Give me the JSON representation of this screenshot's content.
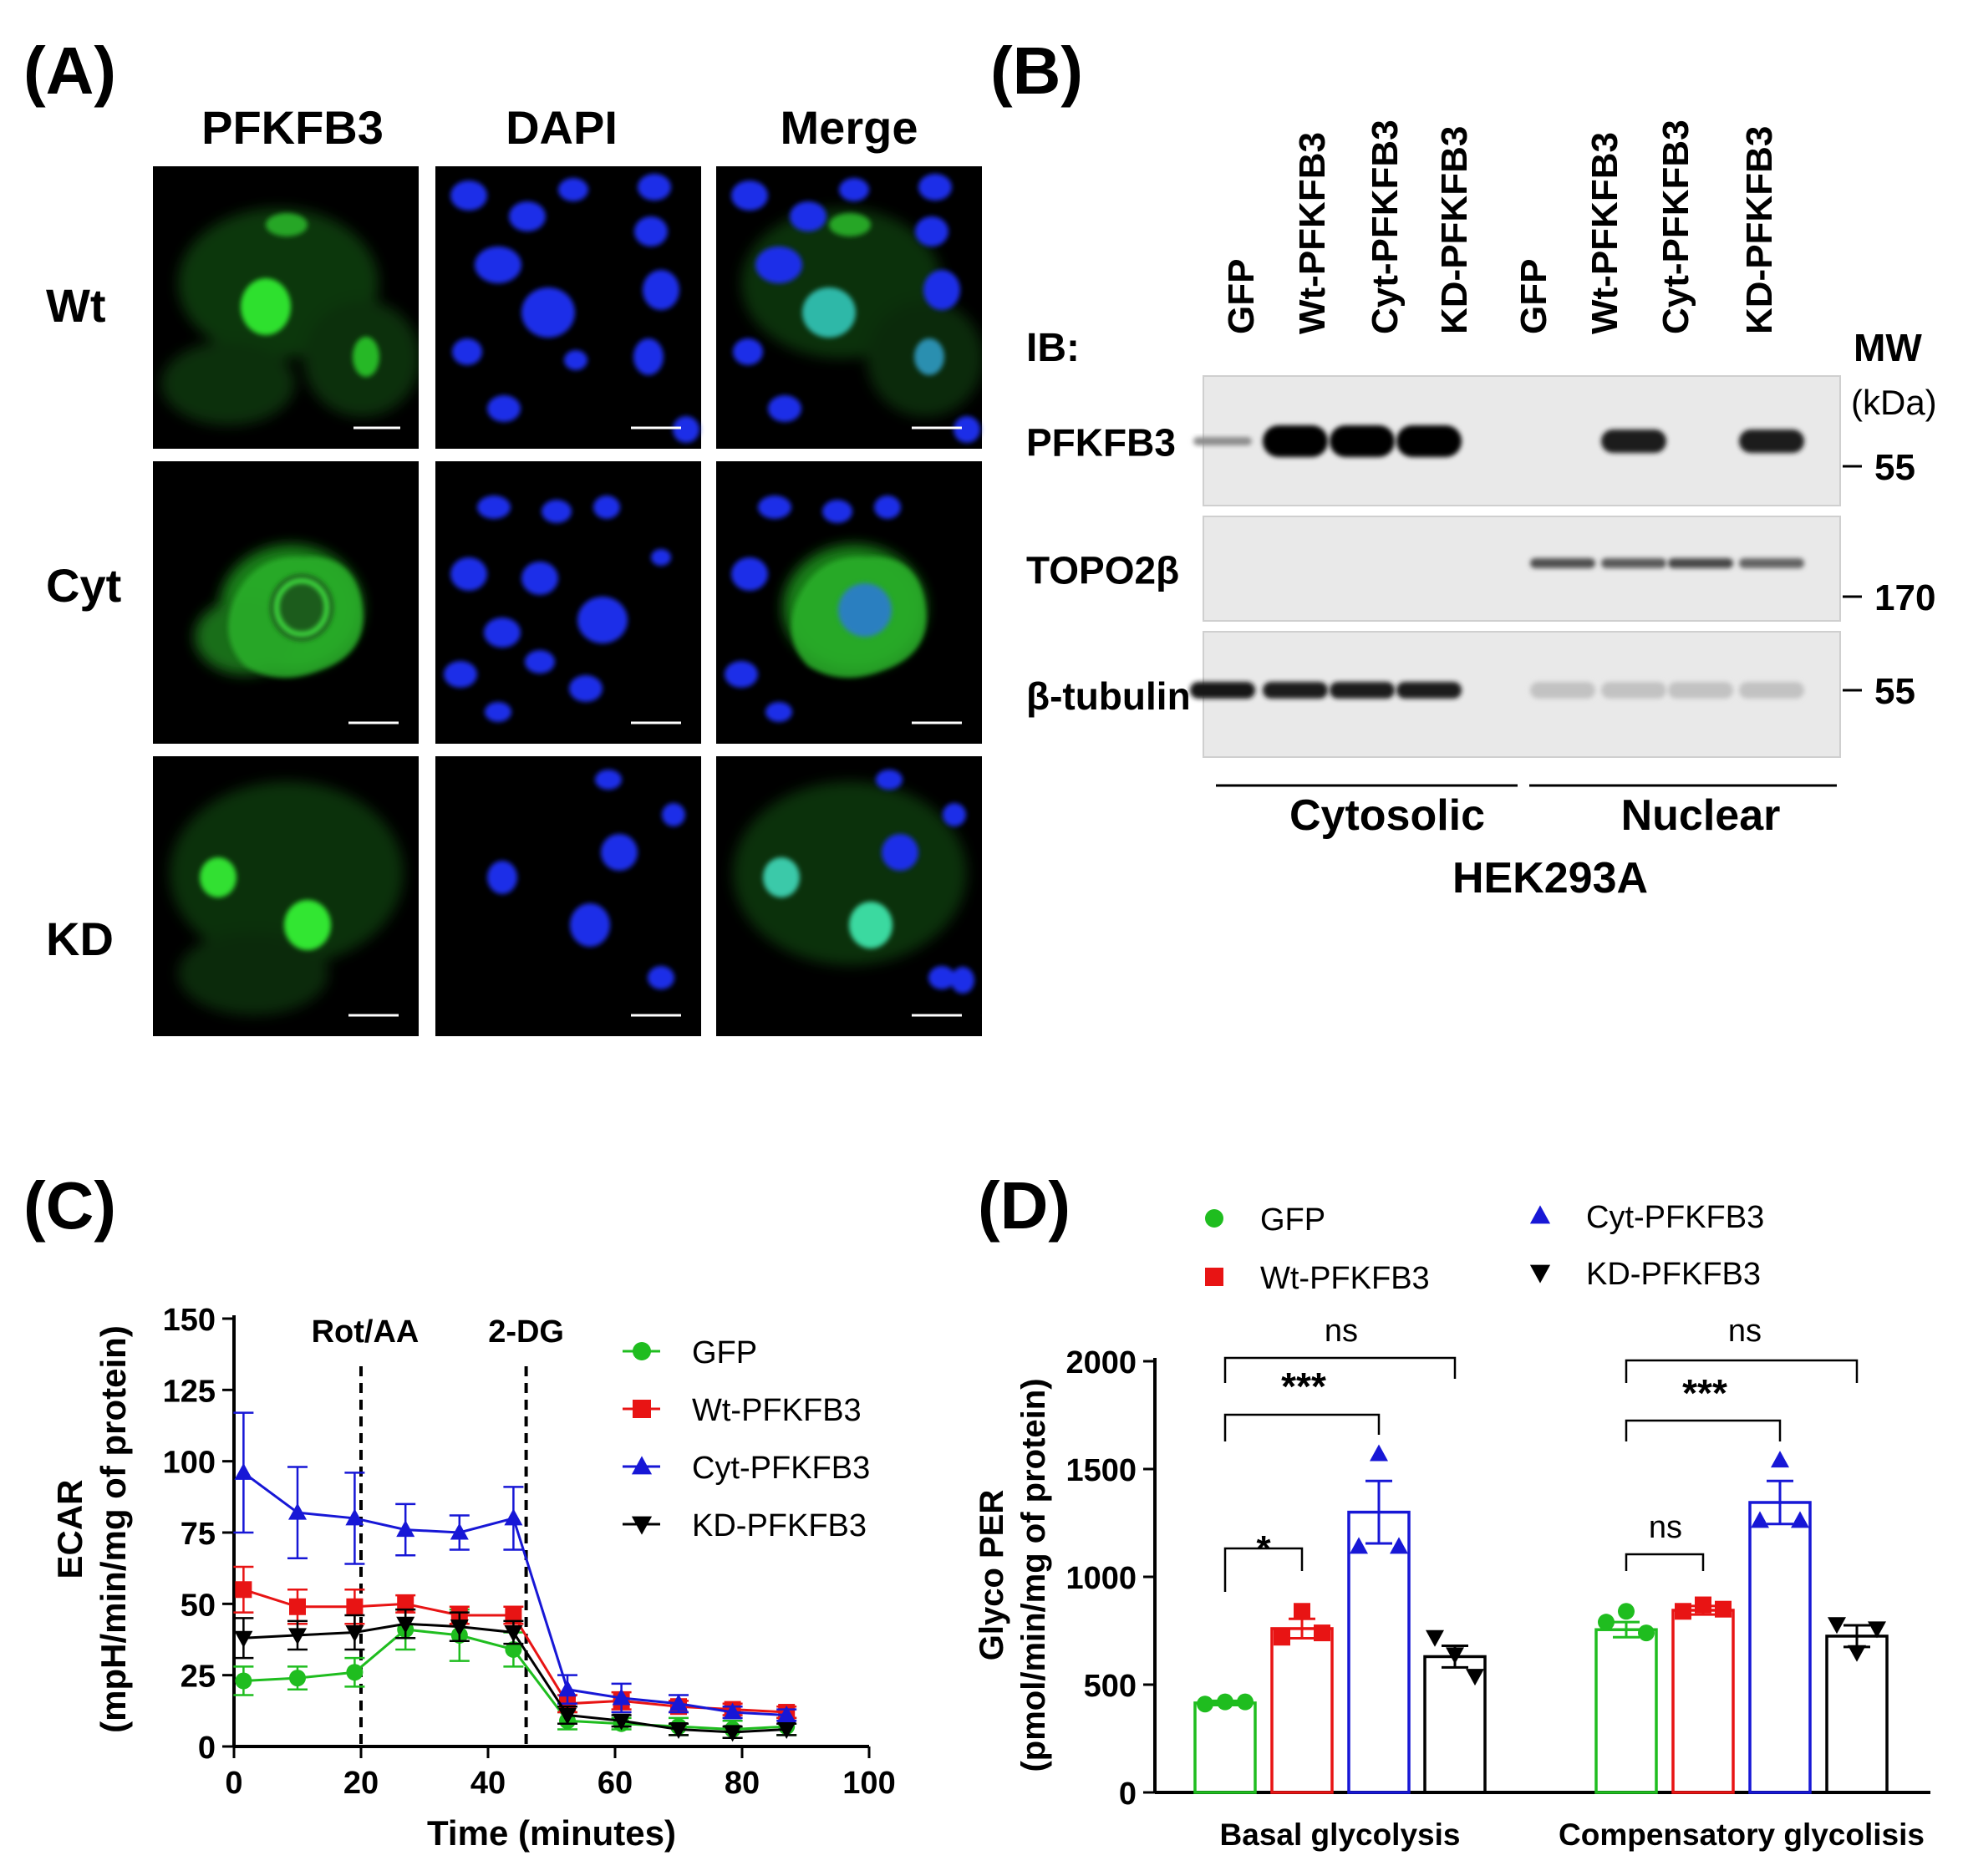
{
  "panel_a": {
    "letter": "(A)",
    "column_headers": [
      "PFKFB3",
      "DAPI",
      "Merge"
    ],
    "row_labels": [
      "Wt",
      "Cyt",
      "KD"
    ]
  },
  "panel_b": {
    "letter": "(B)",
    "lanes": [
      "GFP",
      "Wt-PFKFB3",
      "Cyt-PFKFB3",
      "KD-PFKFB3",
      "GFP",
      "Wt-PFKFB3",
      "Cyt-PFKFB3",
      "KD-PFKFB3"
    ],
    "ib_label": "IB:",
    "mw_label": "MW",
    "kda_label": "(kDa)",
    "blots": [
      {
        "label": "PFKFB3",
        "mw": "55",
        "intensity": [
          0.3,
          1,
          1,
          1,
          0,
          0.85,
          0,
          0.85
        ]
      },
      {
        "label": "TOPO2β",
        "mw": "170",
        "intensity": [
          0,
          0,
          0,
          0,
          0.6,
          0.55,
          0.65,
          0.5
        ]
      },
      {
        "label": "β-tubulin",
        "mw": "55",
        "intensity": [
          0.9,
          0.85,
          0.85,
          0.85,
          0.03,
          0.03,
          0.03,
          0.03
        ]
      }
    ],
    "groups": [
      "Cytosolic",
      "Nuclear"
    ],
    "cell_line": "HEK293A"
  },
  "panel_c": {
    "letter": "(C)",
    "colors": {
      "GFP": "#1fbd1f",
      "Wt-PFKFB3": "#e81414",
      "Cyt-PFKFB3": "#1717d6",
      "KD-PFKFB3": "#000000"
    },
    "treatments": [
      {
        "label": "Rot/AA",
        "x": 20
      },
      {
        "label": "2-DG",
        "x": 46
      }
    ],
    "y_ticks": [
      "0",
      "25",
      "50",
      "75",
      "100",
      "125",
      "150"
    ],
    "x_ticks": [
      "0",
      "20",
      "40",
      "60",
      "80",
      "100"
    ]
  },
  "panel_d": {
    "letter": "(D)",
    "colors": {
      "GFP": "#1fbd1f",
      "Wt-PFKFB3": "#e81414",
      "Cyt-PFKFB3": "#1717d6",
      "KD-PFKFB3": "#000000"
    },
    "legend": [
      "GFP",
      "Wt-PFKFB3",
      "Cyt-PFKFB3",
      "KD-PFKFB3"
    ],
    "y_ticks": [
      "0",
      "500",
      "1000",
      "1500",
      "2000"
    ],
    "significance": [
      {
        "group": 0,
        "label": "*"
      },
      {
        "group": 0,
        "label": "***"
      },
      {
        "group": 0,
        "label": "ns"
      },
      {
        "group": 1,
        "label": "ns"
      },
      {
        "group": 1,
        "label": "***"
      },
      {
        "group": 1,
        "label": "ns"
      }
    ]
  },
  "chart_data": [
    {
      "type": "line",
      "xlabel": "Time (minutes)",
      "ylabel": "ECAR",
      "ylabel2": "(mpH/min/mg of protein)",
      "xlim": [
        0,
        100
      ],
      "ylim": [
        0,
        150
      ],
      "x": [
        1.5,
        10,
        19,
        27,
        35.5,
        44,
        52.5,
        61,
        70,
        78.5,
        87
      ],
      "series": [
        {
          "name": "GFP",
          "marker": "circle",
          "values": [
            23,
            24,
            26,
            41,
            39,
            34,
            9,
            8,
            7,
            6,
            7
          ],
          "err": [
            5,
            4,
            5,
            7,
            9,
            6,
            3,
            2,
            3,
            3,
            3
          ]
        },
        {
          "name": "Wt-PFKFB3",
          "marker": "square",
          "values": [
            55,
            49,
            49,
            50,
            46,
            46,
            15,
            16,
            14,
            13,
            12
          ],
          "err": [
            8,
            6,
            6,
            3,
            3,
            3,
            3,
            3,
            2,
            2,
            2
          ]
        },
        {
          "name": "Cyt-PFKFB3",
          "marker": "triangle-up",
          "values": [
            96,
            82,
            80,
            76,
            75,
            80,
            20,
            17,
            15,
            12,
            11
          ],
          "err": [
            21,
            16,
            16,
            9,
            6,
            11,
            5,
            5,
            3,
            2,
            2
          ]
        },
        {
          "name": "KD-PFKFB3",
          "marker": "triangle-down",
          "values": [
            38,
            39,
            40,
            43,
            42,
            40,
            11,
            9,
            6,
            5,
            6
          ],
          "err": [
            7,
            5,
            6,
            5,
            5,
            4,
            3,
            2,
            2,
            2,
            2
          ]
        }
      ]
    },
    {
      "type": "bar",
      "ylabel": "Glyco PER",
      "ylabel2": "(pmol/min/mg of protein)",
      "ylim": [
        0,
        2000
      ],
      "categories": [
        "Basal glycolysis",
        "Compensatory glycolisis"
      ],
      "series": [
        {
          "name": "GFP",
          "marker": "circle",
          "values": [
            415,
            755
          ],
          "sem": [
            10,
            35
          ],
          "points": [
            [
              410,
              420,
              420
            ],
            [
              790,
              840,
              740
            ]
          ]
        },
        {
          "name": "Wt-PFKFB3",
          "marker": "square",
          "values": [
            760,
            845
          ],
          "sem": [
            45,
            20
          ],
          "points": [
            [
              720,
              840,
              740
            ],
            [
              840,
              870,
              850
            ]
          ]
        },
        {
          "name": "Cyt-PFKFB3",
          "marker": "triangle-up",
          "values": [
            1300,
            1345
          ],
          "sem": [
            145,
            100
          ],
          "points": [
            [
              1140,
              1570,
              1140
            ],
            [
              1260,
              1540,
              1260
            ]
          ]
        },
        {
          "name": "KD-PFKFB3",
          "marker": "triangle-down",
          "values": [
            630,
            725
          ],
          "sem": [
            50,
            50
          ],
          "points": [
            [
              720,
              640,
              540
            ],
            [
              780,
              650,
              760
            ]
          ]
        }
      ]
    }
  ]
}
